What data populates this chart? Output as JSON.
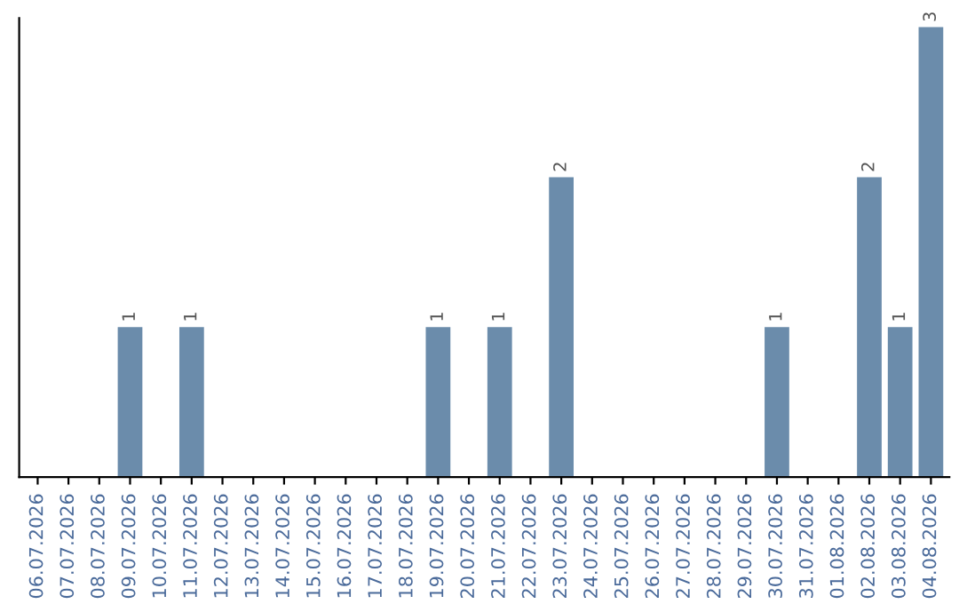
{
  "chart_data": {
    "type": "bar",
    "categories": [
      "06.07.2026",
      "07.07.2026",
      "08.07.2026",
      "09.07.2026",
      "10.07.2026",
      "11.07.2026",
      "12.07.2026",
      "13.07.2026",
      "14.07.2026",
      "15.07.2026",
      "16.07.2026",
      "17.07.2026",
      "18.07.2026",
      "19.07.2026",
      "20.07.2026",
      "21.07.2026",
      "22.07.2026",
      "23.07.2026",
      "24.07.2026",
      "25.07.2026",
      "26.07.2026",
      "27.07.2026",
      "28.07.2026",
      "29.07.2026",
      "30.07.2026",
      "31.07.2026",
      "01.08.2026",
      "02.08.2026",
      "03.08.2026",
      "04.08.2026"
    ],
    "values": [
      0,
      0,
      0,
      1,
      0,
      1,
      0,
      0,
      0,
      0,
      0,
      0,
      0,
      1,
      0,
      1,
      0,
      2,
      0,
      0,
      0,
      0,
      0,
      0,
      1,
      0,
      0,
      2,
      1,
      3
    ],
    "value_labels": [
      null,
      null,
      null,
      "1",
      null,
      "1",
      null,
      null,
      null,
      null,
      null,
      null,
      null,
      "1",
      null,
      "1",
      null,
      "2",
      null,
      null,
      null,
      null,
      null,
      null,
      "1",
      null,
      null,
      "2",
      "1",
      "3"
    ],
    "color": "#6b8cab",
    "tick_labels": "x",
    "grid": false,
    "legend": false
  }
}
